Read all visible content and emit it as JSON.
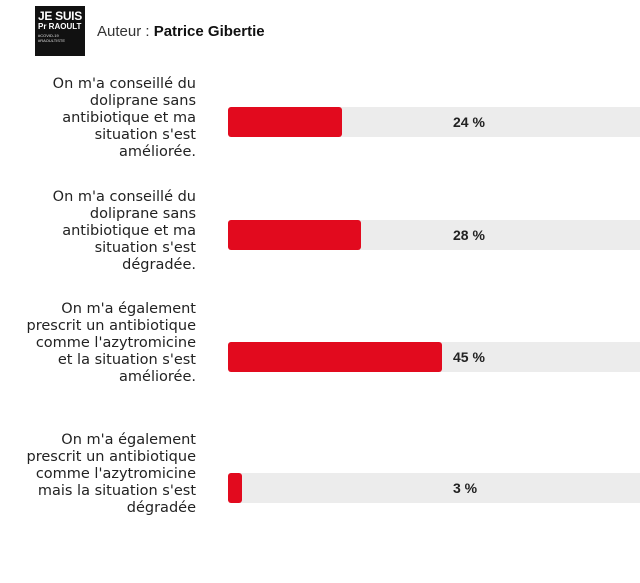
{
  "header": {
    "avatar_lines": [
      "JE SUIS",
      "Pr RAOULT",
      "#COVID-19",
      "#RAOULTISTE"
    ],
    "author_label": "Auteur : ",
    "author_name": "Patrice Gibertie"
  },
  "poll": {
    "options": [
      {
        "text": "On m'a conseillé du doliprane sans antibiotique et ma situation s'est améliorée.",
        "percent_label": "24 %",
        "percent": 24
      },
      {
        "text": "On m'a conseillé du doliprane sans antibiotique et ma situation s'est dégradée.",
        "percent_label": "28 %",
        "percent": 28
      },
      {
        "text": "On m'a également prescrit un antibiotique comme l'azytromicine et la situation s'est améliorée.",
        "percent_label": "45 %",
        "percent": 45
      },
      {
        "text": "On m'a également prescrit un antibiotique comme l'azytromicine mais la situation s'est dégradée",
        "percent_label": "3 %",
        "percent": 3
      }
    ]
  },
  "colors": {
    "bar_fill": "#e20a1e",
    "bar_track": "#ececec"
  }
}
